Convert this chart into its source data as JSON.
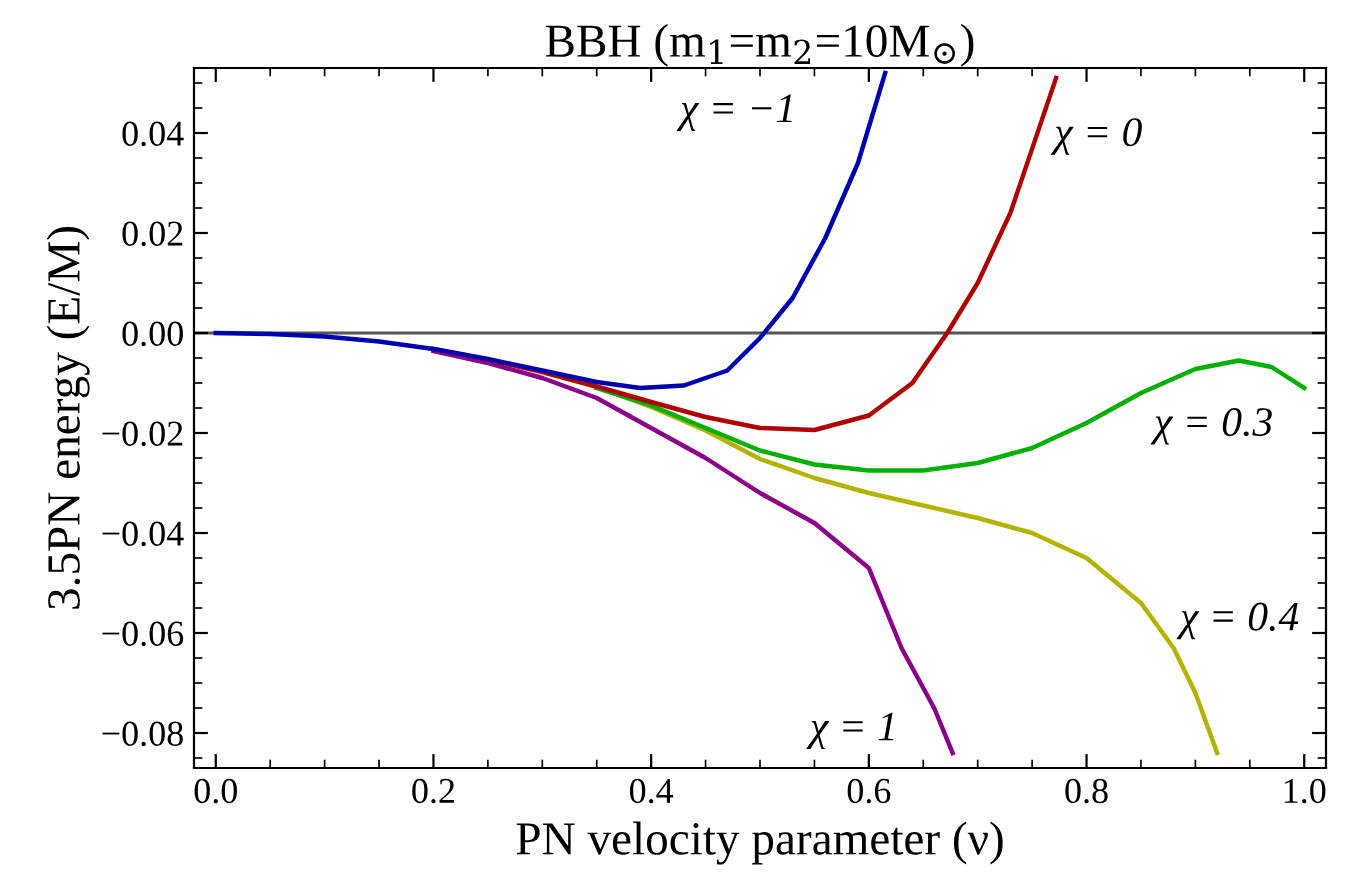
{
  "chart_data": {
    "type": "line",
    "title": "BBH (m$_{1}$=m$_{2}$=10M$_{⊙}$)",
    "xlabel": "PN velocity parameter (ν)",
    "ylabel": "3.5PN energy (E/M)",
    "xlim": [
      -0.02,
      1.02
    ],
    "ylim": [
      -0.087,
      0.053
    ],
    "xticks": [
      {
        "value": 0,
        "label": "0.0"
      },
      {
        "value": 0.2,
        "label": "0.2"
      },
      {
        "value": 0.4,
        "label": "0.4"
      },
      {
        "value": 0.6,
        "label": "0.6"
      },
      {
        "value": 0.8,
        "label": "0.8"
      },
      {
        "value": 1,
        "label": "1.0"
      }
    ],
    "yticks": [
      {
        "value": -0.08,
        "label": "−0.08"
      },
      {
        "value": -0.06,
        "label": "−0.06"
      },
      {
        "value": -0.04,
        "label": "−0.04"
      },
      {
        "value": -0.02,
        "label": "−0.02"
      },
      {
        "value": 0,
        "label": "0.00"
      },
      {
        "value": 0.02,
        "label": "0.02"
      },
      {
        "value": 0.04,
        "label": "0.04"
      }
    ],
    "grid": false,
    "legend": false,
    "line_style": "solid",
    "marker": "none",
    "ref_lines": [
      {
        "axis": "y",
        "value": 0,
        "color": "#555555"
      }
    ],
    "series": [
      {
        "color": "#8b008b",
        "x": [
          0.2,
          0.25,
          0.3,
          0.35,
          0.4,
          0.45,
          0.5,
          0.55,
          0.6,
          0.63,
          0.66,
          0.677
        ],
        "values": [
          -0.0036,
          -0.006,
          -0.009,
          -0.013,
          -0.019,
          -0.025,
          -0.032,
          -0.038,
          -0.047,
          -0.063,
          -0.075,
          -0.084
        ]
      },
      {
        "color": "#b4b400",
        "x": [
          0.3,
          0.35,
          0.4,
          0.45,
          0.5,
          0.55,
          0.6,
          0.65,
          0.7,
          0.75,
          0.8,
          0.85,
          0.88,
          0.9,
          0.92
        ],
        "values": [
          -0.0078,
          -0.0108,
          -0.0148,
          -0.0195,
          -0.0252,
          -0.029,
          -0.032,
          -0.0345,
          -0.037,
          -0.04,
          -0.045,
          -0.054,
          -0.063,
          -0.072,
          -0.084
        ]
      },
      {
        "color": "#00b000",
        "x": [
          0.35,
          0.4,
          0.45,
          0.5,
          0.55,
          0.6,
          0.65,
          0.7,
          0.75,
          0.8,
          0.85,
          0.9,
          0.94,
          0.97,
          1.0
        ],
        "values": [
          -0.011,
          -0.0145,
          -0.019,
          -0.0235,
          -0.0263,
          -0.0275,
          -0.0275,
          -0.026,
          -0.023,
          -0.018,
          -0.012,
          -0.0072,
          -0.0055,
          -0.0068,
          -0.011
        ]
      },
      {
        "color": "#b00000",
        "x": [
          0.2,
          0.25,
          0.3,
          0.35,
          0.4,
          0.45,
          0.5,
          0.55,
          0.6,
          0.64,
          0.672,
          0.7,
          0.73,
          0.772
        ],
        "values": [
          -0.0032,
          -0.0053,
          -0.0078,
          -0.0107,
          -0.0138,
          -0.0168,
          -0.019,
          -0.0194,
          -0.0165,
          -0.01,
          0,
          0.01,
          0.024,
          0.051
        ]
      },
      {
        "color": "#0000b0",
        "x": [
          0,
          0.05,
          0.1,
          0.15,
          0.2,
          0.25,
          0.3,
          0.35,
          0.39,
          0.43,
          0.47,
          0.5,
          0.53,
          0.56,
          0.59,
          0.615
        ],
        "values": [
          0,
          -0.0002,
          -0.0007,
          -0.0017,
          -0.0032,
          -0.0052,
          -0.0075,
          -0.0098,
          -0.011,
          -0.0105,
          -0.0075,
          -0.001,
          0.007,
          0.019,
          0.034,
          0.052
        ]
      }
    ],
    "annotations": [
      "χ = −1",
      "χ = 0",
      "χ = 0.3",
      "χ = 0.4",
      "χ = 1"
    ]
  }
}
